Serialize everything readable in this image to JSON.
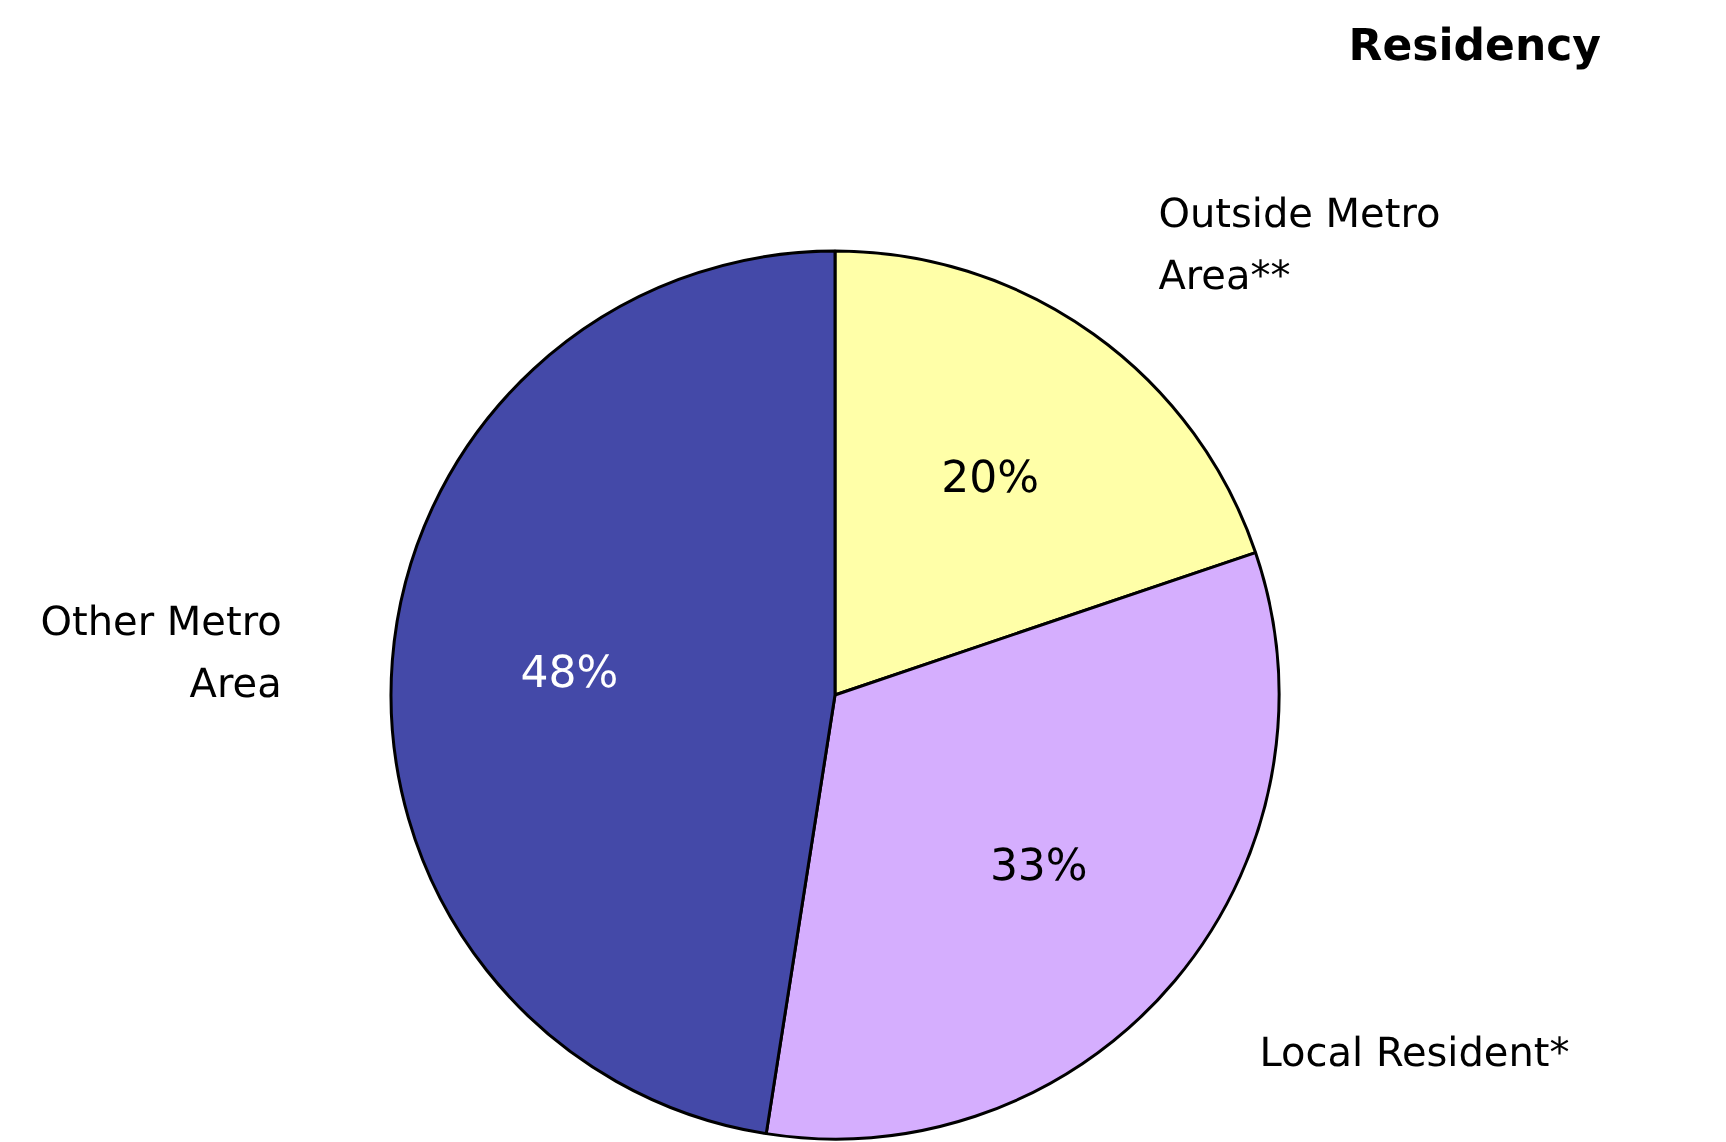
{
  "chart_data": {
    "type": "pie",
    "title": "Residency",
    "categories": [
      "Outside Metro Area**",
      "Local Resident*",
      "Other Metro Area"
    ],
    "values": [
      20,
      33,
      48
    ],
    "colors": [
      "#ffffa8",
      "#d5aefe",
      "#4449a8"
    ],
    "value_labels": [
      "20%",
      "33%",
      "48%"
    ]
  }
}
